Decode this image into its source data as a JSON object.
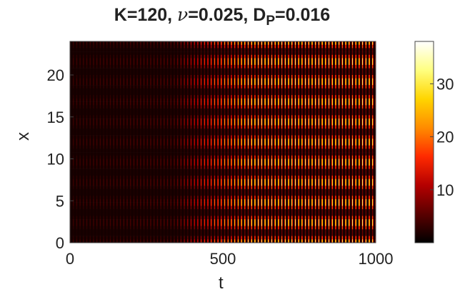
{
  "chart_data": {
    "type": "heatmap",
    "title": {
      "prefix": "K=120, ",
      "nu_symbol": "ν",
      "middle": "=0.025, D",
      "subscript": "P",
      "suffix": "=0.016"
    },
    "xlabel": "t",
    "ylabel": "x",
    "xlim": [
      0,
      1000
    ],
    "ylim": [
      0,
      24
    ],
    "xticks": [
      0,
      500,
      1000
    ],
    "yticks": [
      0,
      5,
      10,
      15,
      20
    ],
    "colorbar": {
      "range": [
        0,
        38
      ],
      "ticks": [
        10,
        20,
        30
      ],
      "colormap": [
        "#000000",
        "#5a0000",
        "#b40000",
        "#ff2a00",
        "#ff8c00",
        "#ffd500",
        "#ffff80",
        "#ffffff"
      ]
    },
    "pattern": {
      "description_free": true,
      "stripe_rows": 10,
      "temporal_period": 11,
      "onset_t": 340,
      "peak_value_early": 4,
      "peak_value_late": 32
    }
  }
}
